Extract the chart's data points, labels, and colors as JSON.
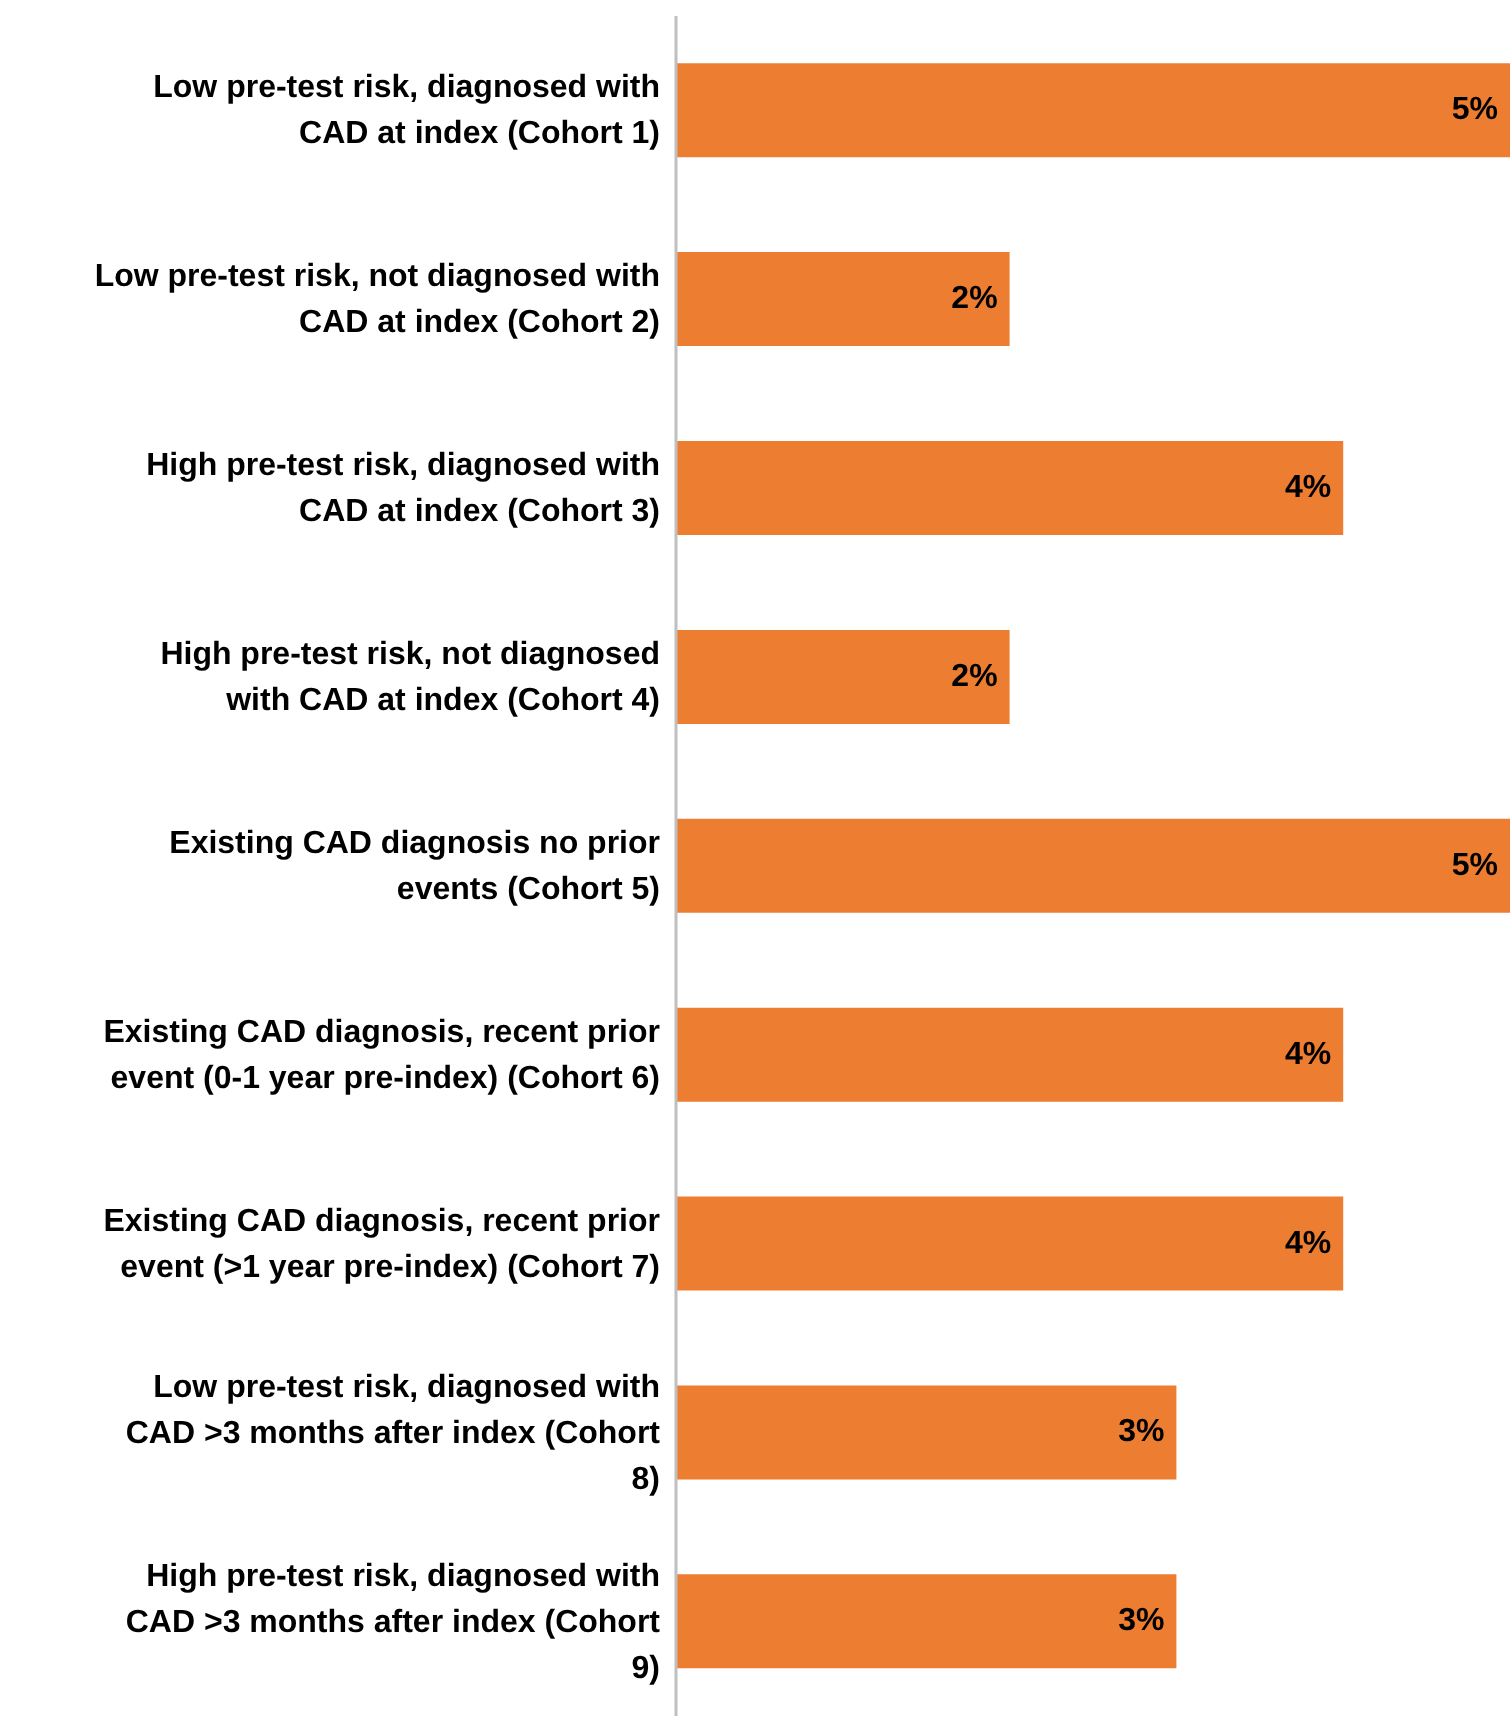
{
  "chart_data": {
    "type": "bar",
    "orientation": "horizontal",
    "categories": [
      "Low pre-test risk, diagnosed with CAD at index (Cohort 1)",
      "Low pre-test risk, not diagnosed with CAD at index (Cohort 2)",
      "High pre-test risk, diagnosed with CAD at index (Cohort 3)",
      "High pre-test risk, not diagnosed with CAD at index (Cohort 4)",
      "Existing CAD diagnosis no prior events (Cohort 5)",
      "Existing CAD diagnosis, recent prior event (0-1 year pre-index) (Cohort 6)",
      "Existing CAD diagnosis, recent prior event (>1 year pre-index) (Cohort 7)",
      "Low pre-test risk, diagnosed with CAD >3 months after index (Cohort 8)",
      "High pre-test risk, diagnosed with CAD >3 months after index (Cohort 9)"
    ],
    "values": [
      5,
      2,
      4,
      2,
      5,
      4,
      4,
      3,
      3
    ],
    "value_labels": [
      "5%",
      "2%",
      "4%",
      "2%",
      "5%",
      "4%",
      "4%",
      "3%",
      "3%"
    ],
    "color": "#ed7d31",
    "xlim": [
      0,
      5
    ],
    "tick_labels": "y"
  }
}
